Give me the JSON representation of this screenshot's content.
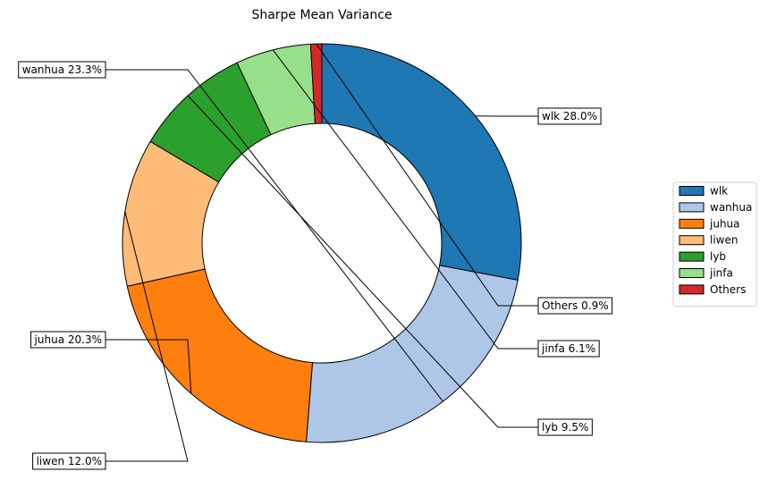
{
  "chart_data": {
    "type": "pie",
    "subtype": "donut",
    "title": "Sharpe Mean Variance",
    "series": [
      {
        "name": "wlk",
        "value": 28.0,
        "label": "wlk 28.0%",
        "color": "#1f77b4"
      },
      {
        "name": "wanhua",
        "value": 23.3,
        "label": "wanhua 23.3%",
        "color": "#aec7e8"
      },
      {
        "name": "juhua",
        "value": 20.3,
        "label": "juhua 20.3%",
        "color": "#ff7f0e"
      },
      {
        "name": "liwen",
        "value": 12.0,
        "label": "liwen 12.0%",
        "color": "#ffbb78"
      },
      {
        "name": "lyb",
        "value": 9.5,
        "label": "lyb 9.5%",
        "color": "#2ca02c"
      },
      {
        "name": "jinfa",
        "value": 6.1,
        "label": "jinfa 6.1%",
        "color": "#98df8a"
      },
      {
        "name": "Others",
        "value": 0.9,
        "label": "Others 0.9%",
        "color": "#d62728"
      }
    ],
    "legend": {
      "placement": "right",
      "entries": [
        "wlk",
        "wanhua",
        "juhua",
        "liwen",
        "lyb",
        "jinfa",
        "Others"
      ]
    },
    "start_angle_deg": 90,
    "direction": "clockwise"
  }
}
